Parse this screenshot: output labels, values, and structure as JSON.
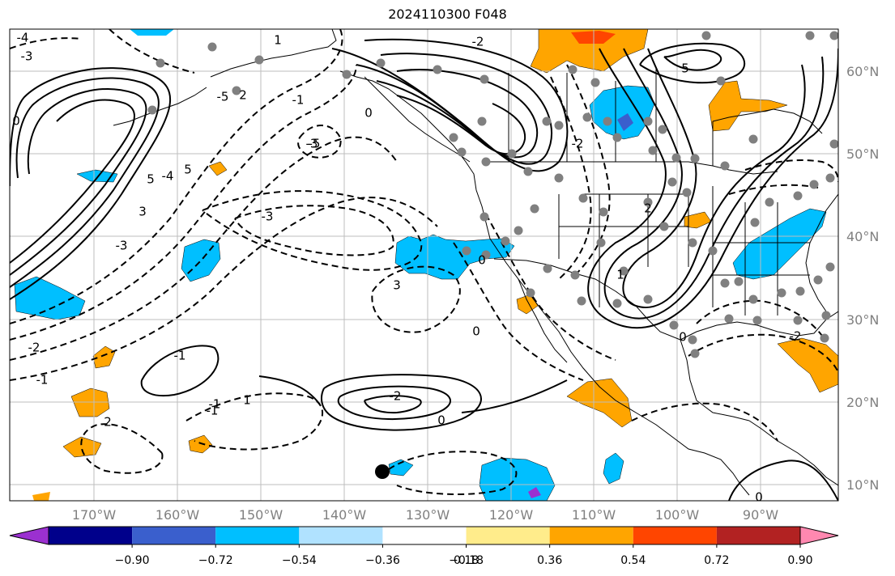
{
  "title": "2024110300 F048",
  "lat_labels": [
    "60°N",
    "50°N",
    "40°N",
    "30°N",
    "20°N",
    "10°N"
  ],
  "lon_labels": [
    "170°W",
    "160°W",
    "150°W",
    "140°W",
    "130°W",
    "120°W",
    "110°W",
    "100°W",
    "90°W"
  ],
  "colorbar": {
    "tick_labels": [
      "−0.90",
      "−0.72",
      "−0.54",
      "−0.36",
      "−0.18",
      "0.18",
      "0.36",
      "0.54",
      "0.72",
      "0.90"
    ],
    "colors": [
      "#9b30d0",
      "#00008b",
      "#3a5fcd",
      "#00bfff",
      "#b0e2ff",
      "#ffffff",
      "#ffec8b",
      "#ffa500",
      "#ff4500",
      "#b22222",
      "#ff88b0"
    ]
  },
  "contour_labels": [
    "-4",
    "-3",
    "1",
    "-2",
    "-1",
    "2",
    "-5",
    "0",
    "5",
    "-5",
    "3",
    "-4",
    "-3",
    "0",
    "-2",
    "-1",
    "2",
    "-1",
    "1",
    "0",
    "-2",
    "3",
    "-3",
    "-1",
    "0",
    "-1",
    "0",
    "-2",
    "5",
    "0",
    "2",
    "-2",
    "1",
    "5",
    "-3",
    "0"
  ],
  "colors": {
    "fill_blue": "#00bfff",
    "fill_orange": "#ffa500",
    "fill_red": "#ff4500",
    "dots": "#808080"
  }
}
